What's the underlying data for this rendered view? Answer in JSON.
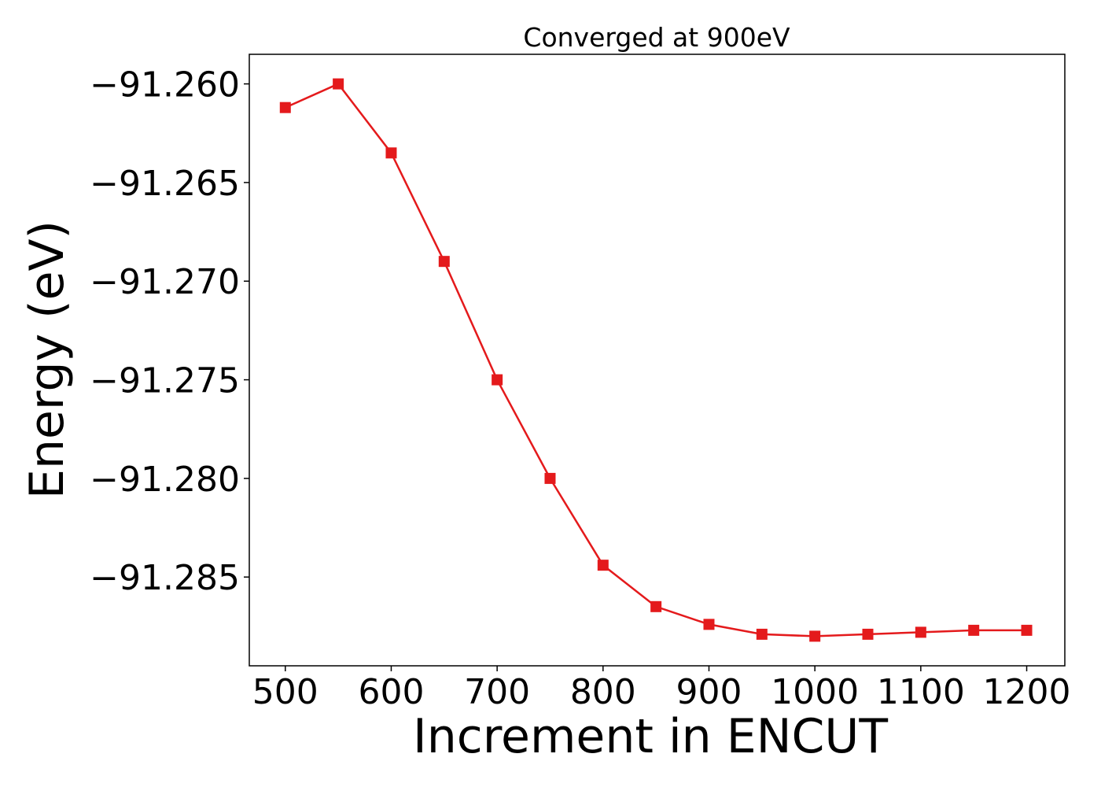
{
  "chart_data": {
    "type": "line",
    "title": "Converged at 900eV",
    "xlabel": "Increment in ENCUT",
    "ylabel": "Energy (eV)",
    "x": [
      500,
      550,
      600,
      650,
      700,
      750,
      800,
      850,
      900,
      950,
      1000,
      1050,
      1100,
      1150,
      1200
    ],
    "series": [
      {
        "values": [
          -91.2612,
          -91.26,
          -91.2635,
          -91.269,
          -91.275,
          -91.28,
          -91.2844,
          -91.2865,
          -91.2874,
          -91.2879,
          -91.288,
          -91.2879,
          -91.2878,
          -91.2877,
          -91.2877
        ],
        "color": "#e41a1c",
        "marker": "square"
      }
    ],
    "xlim": [
      466,
      1236
    ],
    "ylim": [
      -91.2895,
      -91.2585
    ],
    "xticks": [
      500,
      600,
      700,
      800,
      900,
      1000,
      1100,
      1200
    ],
    "xtick_labels": [
      "500",
      "600",
      "700",
      "800",
      "900",
      "1000",
      "1100",
      "1200"
    ],
    "yticks": [
      -91.26,
      -91.265,
      -91.27,
      -91.275,
      -91.28,
      -91.285
    ],
    "ytick_labels": [
      "−91.260",
      "−91.265",
      "−91.270",
      "−91.275",
      "−91.280",
      "−91.285"
    ],
    "grid": false,
    "legend": "none"
  }
}
